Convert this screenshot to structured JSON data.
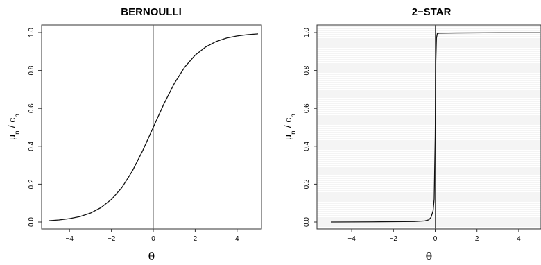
{
  "chart_data": [
    {
      "type": "line",
      "title": "BERNOULLI",
      "xlabel": "θ",
      "ylabel_parts": [
        "μ",
        "n",
        " / ",
        "c",
        "n"
      ],
      "x_ticks": [
        "−4",
        "−2",
        "0",
        "2",
        "4"
      ],
      "y_ticks": [
        "0.0",
        "0.2",
        "0.4",
        "0.6",
        "0.8",
        "1.0"
      ],
      "xlim": [
        -5,
        5
      ],
      "ylim": [
        0,
        1
      ],
      "vline_x": 0,
      "grid": false,
      "x": [
        -5,
        -4.5,
        -4,
        -3.5,
        -3,
        -2.5,
        -2,
        -1.5,
        -1,
        -0.5,
        0,
        0.5,
        1,
        1.5,
        2,
        2.5,
        3,
        3.5,
        4,
        4.5,
        5
      ],
      "y": [
        0.007,
        0.011,
        0.018,
        0.029,
        0.047,
        0.076,
        0.119,
        0.182,
        0.269,
        0.378,
        0.5,
        0.622,
        0.731,
        0.818,
        0.881,
        0.924,
        0.953,
        0.971,
        0.982,
        0.989,
        0.993
      ]
    },
    {
      "type": "line",
      "title": "2−STAR",
      "xlabel": "θ",
      "ylabel_parts": [
        "μ",
        "n",
        " / ",
        "c",
        "n"
      ],
      "x_ticks": [
        "−4",
        "−2",
        "0",
        "2",
        "4"
      ],
      "y_ticks": [
        "0.0",
        "0.2",
        "0.4",
        "0.6",
        "0.8",
        "1.0"
      ],
      "xlim": [
        -5,
        5
      ],
      "ylim": [
        0,
        1
      ],
      "vline_x": 0,
      "grid": true,
      "x": [
        -5,
        -3,
        -2,
        -1,
        -0.5,
        -0.3,
        -0.2,
        -0.1,
        -0.05,
        0,
        0.03,
        0.06,
        0.1,
        0.2,
        1,
        3,
        5
      ],
      "y": [
        0.0,
        0.001,
        0.002,
        0.003,
        0.006,
        0.012,
        0.025,
        0.06,
        0.12,
        0.45,
        0.85,
        0.97,
        0.995,
        0.997,
        0.998,
        0.999,
        0.999
      ]
    }
  ]
}
